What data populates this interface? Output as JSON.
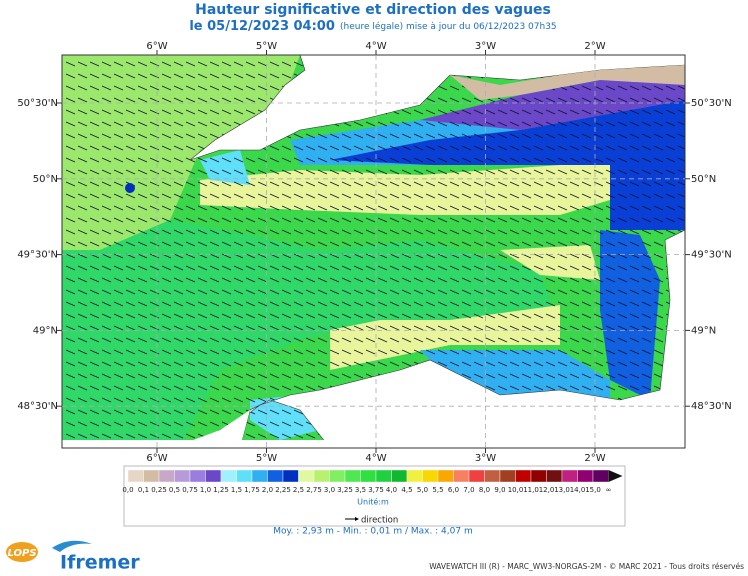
{
  "header": {
    "title": "Hauteur significative et direction des vagues",
    "date": "le 05/12/2023 04:00",
    "update": "(heure légale) mise à jour du 06/12/2023 07h35"
  },
  "map": {
    "longitudes": [
      "6°W",
      "5°W",
      "4°W",
      "3°W",
      "2°W"
    ],
    "latitudes": [
      "50°30'N",
      "50°N",
      "49°30'N",
      "49°N",
      "48°30'N"
    ],
    "grid": true
  },
  "legend": {
    "labels": [
      "0,0",
      "0,1",
      "0,25",
      "0,5",
      "0,75",
      "1,0",
      "1,25",
      "1,5",
      "1,75",
      "2,0",
      "2,25",
      "2,5",
      "2,75",
      "3,0",
      "3,25",
      "3,5",
      "3,75",
      "4,0",
      "4,5",
      "5,0",
      "5,5",
      "6,0",
      "7,0",
      "8,0",
      "9,0",
      "10,0",
      "11,0",
      "12,0",
      "13,0",
      "14,0",
      "15,0",
      "∞"
    ],
    "colors": [
      "#e6d6c6",
      "#d2bda4",
      "#c8a8c8",
      "#b89ad8",
      "#9b7de0",
      "#6a48c8",
      "#a0f0ff",
      "#60e0f8",
      "#30b0f0",
      "#1060e0",
      "#0030c0",
      "#e0f8a0",
      "#b8f070",
      "#80f060",
      "#50e850",
      "#30e040",
      "#20d040",
      "#10b830",
      "#f0f040",
      "#f8d800",
      "#f8a800",
      "#f88060",
      "#f04040",
      "#c06040",
      "#a04020",
      "#c00000",
      "#900000",
      "#701010",
      "#c02080",
      "#900070",
      "#600060"
    ],
    "unit": "Unité:m",
    "direction": "direction",
    "stats": "Moy. : 2,93 m   -   Min. : 0,01 m / Max. : 4,07 m"
  },
  "footer": {
    "logo_lops": "LOPS",
    "logo_ifremer": "Ifremer",
    "credits": "WAVEWATCH III (R) - MARC_WW3-NORGAS-2M - © MARC 2021 - Tous droits réservés"
  }
}
